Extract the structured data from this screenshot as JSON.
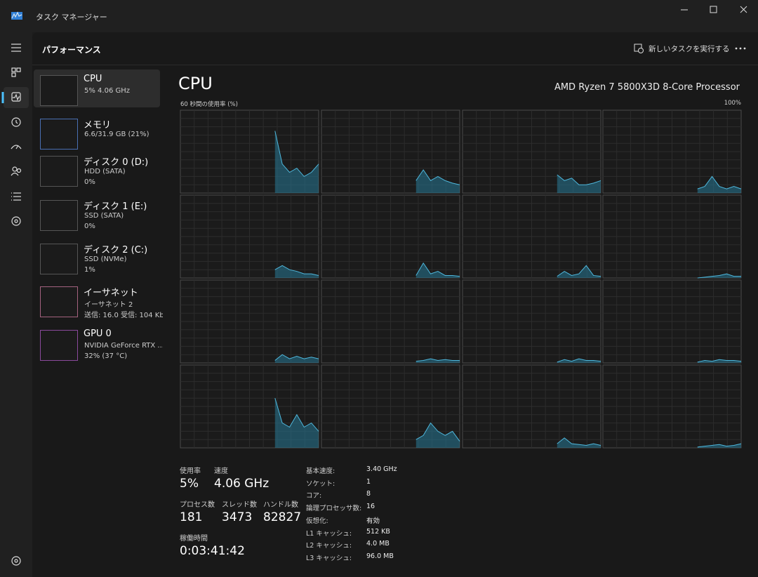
{
  "window": {
    "title": "タスク マネージャー"
  },
  "header": {
    "title": "パフォーマンス",
    "run_task": "新しいタスクを実行する"
  },
  "sidebar": [
    {
      "name": "CPU",
      "lines": [
        "5%  4.06 GHz"
      ]
    },
    {
      "name": "メモリ",
      "lines": [
        "6.6/31.9 GB (21%)"
      ]
    },
    {
      "name": "ディスク 0 (D:)",
      "lines": [
        "HDD (SATA)",
        "0%"
      ]
    },
    {
      "name": "ディスク 1 (E:)",
      "lines": [
        "SSD (SATA)",
        "0%"
      ]
    },
    {
      "name": "ディスク 2 (C:)",
      "lines": [
        "SSD (NVMe)",
        "1%"
      ]
    },
    {
      "name": "イーサネット",
      "lines": [
        "イーサネット 2",
        "送信: 16.0 受信: 104 Kb"
      ]
    },
    {
      "name": "GPU 0",
      "lines": [
        "NVIDIA GeForce RTX ...",
        "32% (37 °C)"
      ]
    }
  ],
  "main": {
    "title": "CPU",
    "processor": "AMD Ryzen 7 5800X3D 8-Core Processor",
    "graph_label": "60 秒間の使用率 (%)",
    "graph_max": "100%",
    "ylim": [
      0,
      100
    ],
    "cores": [
      {
        "values": [
          null,
          null,
          null,
          null,
          null,
          null,
          null,
          null,
          null,
          null,
          null,
          null,
          null,
          75,
          35,
          25,
          30,
          20,
          25,
          35
        ]
      },
      {
        "values": [
          null,
          null,
          null,
          null,
          null,
          null,
          null,
          null,
          null,
          null,
          null,
          null,
          null,
          15,
          28,
          15,
          20,
          15,
          12,
          10
        ]
      },
      {
        "values": [
          null,
          null,
          null,
          null,
          null,
          null,
          null,
          null,
          null,
          null,
          null,
          null,
          null,
          22,
          15,
          18,
          10,
          10,
          12,
          15
        ]
      },
      {
        "values": [
          null,
          null,
          null,
          null,
          null,
          null,
          null,
          null,
          null,
          null,
          null,
          null,
          null,
          5,
          8,
          20,
          8,
          5,
          8,
          5
        ]
      },
      {
        "values": [
          null,
          null,
          null,
          null,
          null,
          null,
          null,
          null,
          null,
          null,
          null,
          null,
          null,
          10,
          15,
          10,
          8,
          5,
          5,
          3
        ]
      },
      {
        "values": [
          null,
          null,
          null,
          null,
          null,
          null,
          null,
          null,
          null,
          null,
          null,
          null,
          null,
          3,
          18,
          5,
          8,
          3,
          3,
          2
        ]
      },
      {
        "values": [
          null,
          null,
          null,
          null,
          null,
          null,
          null,
          null,
          null,
          null,
          null,
          null,
          null,
          2,
          8,
          3,
          5,
          15,
          3,
          2
        ]
      },
      {
        "values": [
          null,
          null,
          null,
          null,
          null,
          null,
          null,
          null,
          null,
          null,
          null,
          null,
          null,
          0,
          1,
          2,
          3,
          5,
          2,
          2
        ]
      },
      {
        "values": [
          null,
          null,
          null,
          null,
          null,
          null,
          null,
          null,
          null,
          null,
          null,
          null,
          null,
          3,
          10,
          5,
          8,
          5,
          7,
          5
        ]
      },
      {
        "values": [
          null,
          null,
          null,
          null,
          null,
          null,
          null,
          null,
          null,
          null,
          null,
          null,
          null,
          2,
          3,
          5,
          3,
          4,
          3,
          3
        ]
      },
      {
        "values": [
          null,
          null,
          null,
          null,
          null,
          null,
          null,
          null,
          null,
          null,
          null,
          null,
          null,
          1,
          4,
          2,
          5,
          3,
          3,
          2
        ]
      },
      {
        "values": [
          null,
          null,
          null,
          null,
          null,
          null,
          null,
          null,
          null,
          null,
          null,
          null,
          null,
          1,
          3,
          2,
          4,
          3,
          3,
          2
        ]
      },
      {
        "values": [
          null,
          null,
          null,
          null,
          null,
          null,
          null,
          null,
          null,
          null,
          null,
          null,
          null,
          60,
          30,
          25,
          40,
          25,
          30,
          20
        ]
      },
      {
        "values": [
          null,
          null,
          null,
          null,
          null,
          null,
          null,
          null,
          null,
          null,
          null,
          null,
          null,
          10,
          15,
          30,
          20,
          15,
          20,
          8
        ]
      },
      {
        "values": [
          null,
          null,
          null,
          null,
          null,
          null,
          null,
          null,
          null,
          null,
          null,
          null,
          null,
          5,
          12,
          5,
          4,
          3,
          5,
          3
        ]
      },
      {
        "values": [
          null,
          null,
          null,
          null,
          null,
          null,
          null,
          null,
          null,
          null,
          null,
          null,
          null,
          1,
          2,
          3,
          4,
          2,
          3,
          5
        ]
      }
    ]
  },
  "stats": [
    {
      "label": "使用率",
      "value": "5%"
    },
    {
      "label": "速度",
      "value": "4.06 GHz"
    },
    {
      "label": "プロセス数",
      "value": "181"
    },
    {
      "label": "スレッド数",
      "value": "3473"
    },
    {
      "label": "ハンドル数",
      "value": "82827"
    },
    {
      "label": "稼働時間",
      "value": "0:03:41:42"
    }
  ],
  "specs": [
    {
      "label": "基本速度:",
      "value": "3.40 GHz"
    },
    {
      "label": "ソケット:",
      "value": "1"
    },
    {
      "label": "コア:",
      "value": "8"
    },
    {
      "label": "論理プロセッサ数:",
      "value": "16"
    },
    {
      "label": "仮想化:",
      "value": "有効"
    },
    {
      "label": "L1 キャッシュ:",
      "value": "512 KB"
    },
    {
      "label": "L2 キャッシュ:",
      "value": "4.0 MB"
    },
    {
      "label": "L3 キャッシュ:",
      "value": "96.0 MB"
    }
  ]
}
